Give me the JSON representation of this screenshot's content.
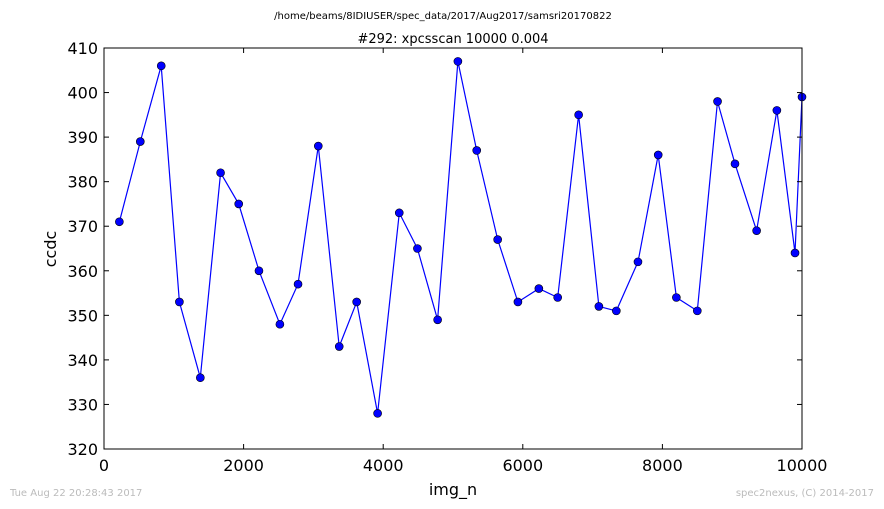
{
  "figure": {
    "path_title": "/home/beams/8IDIUSER/spec_data/2017/Aug2017/samsri20170822",
    "footer_left": "Tue Aug 22 20:28:43 2017",
    "footer_right": "spec2nexus, (C) 2014-2017"
  },
  "chart_data": {
    "type": "line",
    "title": "#292: xpcsscan 10000 0.004",
    "xlabel": "img_n",
    "ylabel": "ccdc",
    "xlim": [
      0,
      10000
    ],
    "ylim": [
      320,
      410
    ],
    "xticks": [
      0,
      2000,
      4000,
      6000,
      8000,
      10000
    ],
    "yticks": [
      320,
      330,
      340,
      350,
      360,
      370,
      380,
      390,
      400,
      410
    ],
    "grid": false,
    "color": "#0000ff",
    "marker": "circle",
    "series": [
      {
        "x": [
          220,
          520,
          820,
          1080,
          1380,
          1670,
          1930,
          2220,
          2520,
          2780,
          3070,
          3370,
          3620,
          3920,
          4230,
          4490,
          4780,
          5070,
          5340,
          5640,
          5930,
          6230,
          6500,
          6800,
          7090,
          7340,
          7650,
          7940,
          8200,
          8500,
          8790,
          9040,
          9350,
          9640,
          9900,
          10000
        ],
        "y": [
          371,
          389,
          406,
          353,
          336,
          382,
          375,
          360,
          348,
          357,
          388,
          343,
          353,
          328,
          373,
          365,
          349,
          407,
          387,
          367,
          353,
          356,
          354,
          395,
          352,
          351,
          362,
          386,
          354,
          351,
          398,
          384,
          369,
          396,
          364,
          399
        ]
      }
    ]
  }
}
